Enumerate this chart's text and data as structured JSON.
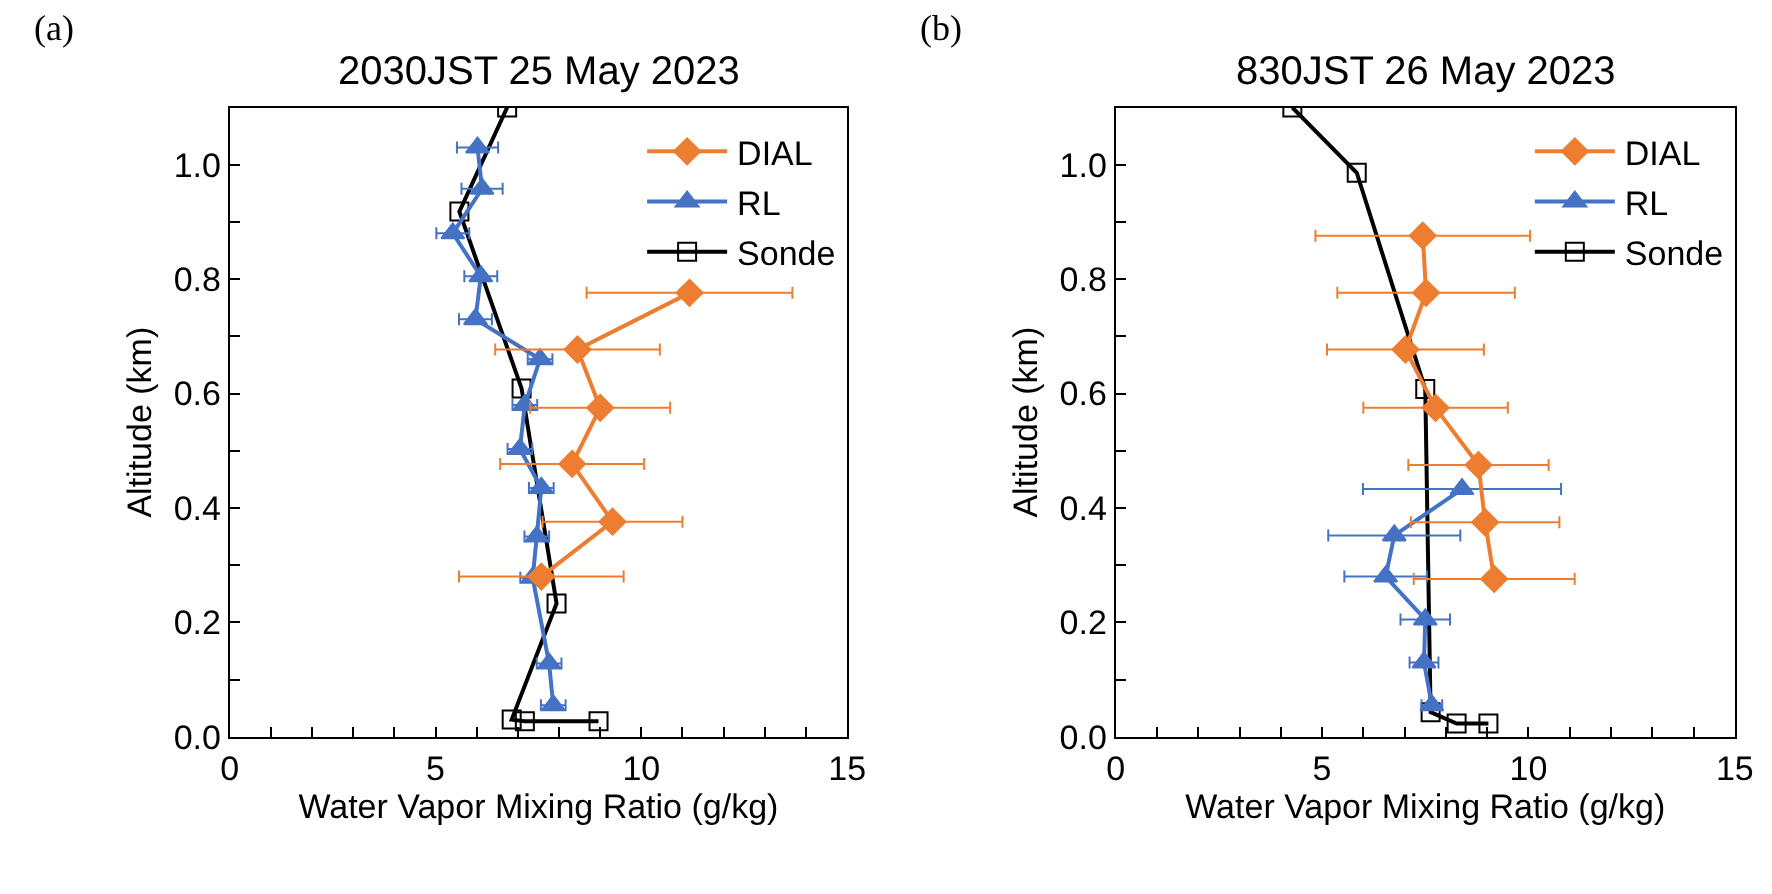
{
  "chart_data": [
    {
      "type": "line",
      "title": "2030JST 25 May 2023",
      "xlabel": "Water Vapor Mixing Ratio (g/kg)",
      "ylabel": "Altitude (km)",
      "annotations": [
        "(a)"
      ],
      "xlim": [
        0,
        15
      ],
      "xticks": [
        0,
        {
          "value": 1,
          "label": null
        },
        {
          "value": 2,
          "label": null
        },
        {
          "value": 3,
          "label": null
        },
        {
          "value": 4,
          "label": null
        },
        5,
        {
          "value": 6,
          "label": null
        },
        {
          "value": 7,
          "label": null
        },
        {
          "value": 8,
          "label": null
        },
        {
          "value": 9,
          "label": null
        },
        10,
        {
          "value": 11,
          "label": null
        },
        {
          "value": 12,
          "label": null
        },
        {
          "value": 13,
          "label": null
        },
        {
          "value": 14,
          "label": null
        },
        15
      ],
      "ylim": [
        0,
        1.1
      ],
      "yticks": [
        {
          "value": 0,
          "label": "0.0"
        },
        {
          "value": 0.1,
          "label": null
        },
        {
          "value": 0.2,
          "label": "0.2"
        },
        {
          "value": 0.3,
          "label": null
        },
        {
          "value": 0.4,
          "label": "0.4"
        },
        {
          "value": 0.5,
          "label": null
        },
        {
          "value": 0.6,
          "label": "0.6"
        },
        {
          "value": 0.7,
          "label": null
        },
        {
          "value": 0.8,
          "label": "0.8"
        },
        {
          "value": 0.9,
          "label": null
        },
        {
          "value": 1.0,
          "label": "1.0"
        }
      ],
      "legend": "top right",
      "series": [
        {
          "name": "DIAL",
          "color": "#ed7d31",
          "marker": "diamond",
          "x": [
            11.17,
            8.45,
            9.0,
            8.32,
            9.3,
            7.57
          ],
          "values": [
            0.776,
            0.677,
            0.575,
            0.477,
            0.376,
            0.28
          ],
          "xerrors": [
            2.5,
            2.0,
            1.7,
            1.75,
            1.7,
            2.0
          ]
        },
        {
          "name": "RL",
          "color": "#4472c4",
          "marker": "triangle",
          "x": [
            7.86,
            7.76,
            7.36,
            7.46,
            7.57,
            7.05,
            7.17,
            7.54,
            5.97,
            6.1,
            5.42,
            6.13,
            6.02
          ],
          "values": [
            0.055,
            0.128,
            0.278,
            0.35,
            0.435,
            0.503,
            0.58,
            0.66,
            0.73,
            0.805,
            0.88,
            0.958,
            1.03
          ],
          "xerrors": [
            0.3,
            0.3,
            0.3,
            0.3,
            0.3,
            0.3,
            0.3,
            0.3,
            0.4,
            0.4,
            0.4,
            0.5,
            0.5
          ]
        },
        {
          "name": "Sonde",
          "color": "#000000",
          "marker": "square",
          "x": [
            6.74,
            5.58,
            7.09,
            7.94,
            6.85,
            7.17,
            8.96
          ],
          "values": [
            1.1,
            0.918,
            0.609,
            0.233,
            0.03,
            0.027,
            0.027
          ]
        }
      ]
    },
    {
      "type": "line",
      "title": "830JST 26 May 2023",
      "xlabel": "Water Vapor Mixing Ratio (g/kg)",
      "ylabel": "Altitude (km)",
      "annotations": [
        "(b)"
      ],
      "xlim": [
        0,
        15
      ],
      "xticks": [
        0,
        {
          "value": 1,
          "label": null
        },
        {
          "value": 2,
          "label": null
        },
        {
          "value": 3,
          "label": null
        },
        {
          "value": 4,
          "label": null
        },
        5,
        {
          "value": 6,
          "label": null
        },
        {
          "value": 7,
          "label": null
        },
        {
          "value": 8,
          "label": null
        },
        {
          "value": 9,
          "label": null
        },
        10,
        {
          "value": 11,
          "label": null
        },
        {
          "value": 12,
          "label": null
        },
        {
          "value": 13,
          "label": null
        },
        {
          "value": 14,
          "label": null
        },
        15
      ],
      "ylim": [
        0,
        1.1
      ],
      "yticks": [
        {
          "value": 0,
          "label": "0.0"
        },
        {
          "value": 0.1,
          "label": null
        },
        {
          "value": 0.2,
          "label": "0.2"
        },
        {
          "value": 0.3,
          "label": null
        },
        {
          "value": 0.4,
          "label": "0.4"
        },
        {
          "value": 0.5,
          "label": null
        },
        {
          "value": 0.6,
          "label": "0.6"
        },
        {
          "value": 0.7,
          "label": null
        },
        {
          "value": 0.8,
          "label": "0.8"
        },
        {
          "value": 0.9,
          "label": null
        },
        {
          "value": 1.0,
          "label": "1.0"
        }
      ],
      "legend": "top right",
      "series": [
        {
          "name": "DIAL",
          "color": "#ed7d31",
          "marker": "diamond",
          "x": [
            7.44,
            7.52,
            7.02,
            7.75,
            8.79,
            8.95,
            9.17
          ],
          "values": [
            0.876,
            0.776,
            0.677,
            0.575,
            0.475,
            0.375,
            0.276
          ],
          "xerrors": [
            2.6,
            2.15,
            1.9,
            1.75,
            1.7,
            1.8,
            1.95
          ]
        },
        {
          "name": "RL",
          "color": "#4472c4",
          "marker": "triangle",
          "x": [
            8.39,
            6.75,
            6.54,
            7.5,
            7.47,
            7.66
          ],
          "values": [
            0.433,
            0.352,
            0.28,
            0.205,
            0.13,
            0.055
          ],
          "xerrors": [
            2.4,
            1.6,
            1.0,
            0.6,
            0.35,
            0.25
          ]
        },
        {
          "name": "Sonde",
          "color": "#000000",
          "marker": "square",
          "x": [
            4.28,
            5.84,
            7.5,
            7.63,
            8.26,
            9.03
          ],
          "values": [
            1.1,
            0.986,
            0.608,
            0.043,
            0.023,
            0.023
          ]
        }
      ]
    }
  ]
}
